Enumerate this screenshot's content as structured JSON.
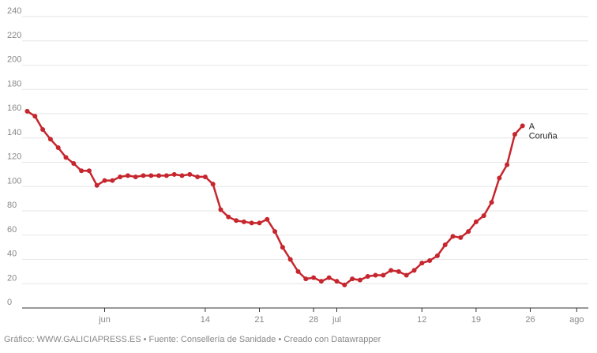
{
  "chart_data": {
    "type": "line",
    "ylim": [
      0,
      240
    ],
    "yticks": [
      0,
      20,
      40,
      60,
      80,
      100,
      120,
      140,
      160,
      180,
      200,
      220,
      240
    ],
    "x_range": [
      "2020-05-22",
      "2020-08-05"
    ],
    "xticks": [
      {
        "date": "2020-06-01",
        "label": "jun"
      },
      {
        "date": "2020-06-14",
        "label": "14"
      },
      {
        "date": "2020-06-21",
        "label": "21"
      },
      {
        "date": "2020-06-28",
        "label": "28"
      },
      {
        "date": "2020-07-01",
        "label": "jul"
      },
      {
        "date": "2020-07-12",
        "label": "12"
      },
      {
        "date": "2020-07-19",
        "label": "19"
      },
      {
        "date": "2020-07-26",
        "label": "26"
      },
      {
        "date": "2020-08-01",
        "label": "ago"
      }
    ],
    "series": [
      {
        "name": "A Coruña",
        "name_lines": [
          "A",
          "Coruña"
        ],
        "color": "#c6262e",
        "points": [
          [
            "2020-05-22",
            162
          ],
          [
            "2020-05-23",
            158
          ],
          [
            "2020-05-24",
            147
          ],
          [
            "2020-05-25",
            139
          ],
          [
            "2020-05-26",
            132
          ],
          [
            "2020-05-27",
            124
          ],
          [
            "2020-05-28",
            119
          ],
          [
            "2020-05-29",
            113
          ],
          [
            "2020-05-30",
            113
          ],
          [
            "2020-05-31",
            101
          ],
          [
            "2020-06-01",
            105
          ],
          [
            "2020-06-02",
            105
          ],
          [
            "2020-06-03",
            108
          ],
          [
            "2020-06-04",
            109
          ],
          [
            "2020-06-05",
            108
          ],
          [
            "2020-06-06",
            109
          ],
          [
            "2020-06-07",
            109
          ],
          [
            "2020-06-08",
            109
          ],
          [
            "2020-06-09",
            109
          ],
          [
            "2020-06-10",
            110
          ],
          [
            "2020-06-11",
            109
          ],
          [
            "2020-06-12",
            110
          ],
          [
            "2020-06-13",
            108
          ],
          [
            "2020-06-14",
            108
          ],
          [
            "2020-06-15",
            102
          ],
          [
            "2020-06-16",
            81
          ],
          [
            "2020-06-17",
            75
          ],
          [
            "2020-06-18",
            72
          ],
          [
            "2020-06-19",
            71
          ],
          [
            "2020-06-20",
            70
          ],
          [
            "2020-06-21",
            70
          ],
          [
            "2020-06-22",
            73
          ],
          [
            "2020-06-23",
            63
          ],
          [
            "2020-06-24",
            50
          ],
          [
            "2020-06-25",
            40
          ],
          [
            "2020-06-26",
            30
          ],
          [
            "2020-06-27",
            24
          ],
          [
            "2020-06-28",
            25
          ],
          [
            "2020-06-29",
            22
          ],
          [
            "2020-06-30",
            25
          ],
          [
            "2020-07-01",
            22
          ],
          [
            "2020-07-02",
            19
          ],
          [
            "2020-07-03",
            24
          ],
          [
            "2020-07-04",
            23
          ],
          [
            "2020-07-05",
            26
          ],
          [
            "2020-07-06",
            27
          ],
          [
            "2020-07-07",
            27
          ],
          [
            "2020-07-08",
            31
          ],
          [
            "2020-07-09",
            30
          ],
          [
            "2020-07-10",
            27
          ],
          [
            "2020-07-11",
            31
          ],
          [
            "2020-07-12",
            37
          ],
          [
            "2020-07-13",
            39
          ],
          [
            "2020-07-14",
            43
          ],
          [
            "2020-07-15",
            52
          ],
          [
            "2020-07-16",
            59
          ],
          [
            "2020-07-17",
            58
          ],
          [
            "2020-07-18",
            63
          ],
          [
            "2020-07-19",
            71
          ],
          [
            "2020-07-20",
            76
          ],
          [
            "2020-07-21",
            87
          ],
          [
            "2020-07-22",
            107
          ],
          [
            "2020-07-23",
            118
          ],
          [
            "2020-07-24",
            143
          ],
          [
            "2020-07-25",
            150
          ]
        ]
      }
    ]
  },
  "footer": {
    "text": "Gráfico: WWW.GALICIAPRESS.ES • Fuente: Consellería de Sanidade • Creado con Datawrapper"
  }
}
